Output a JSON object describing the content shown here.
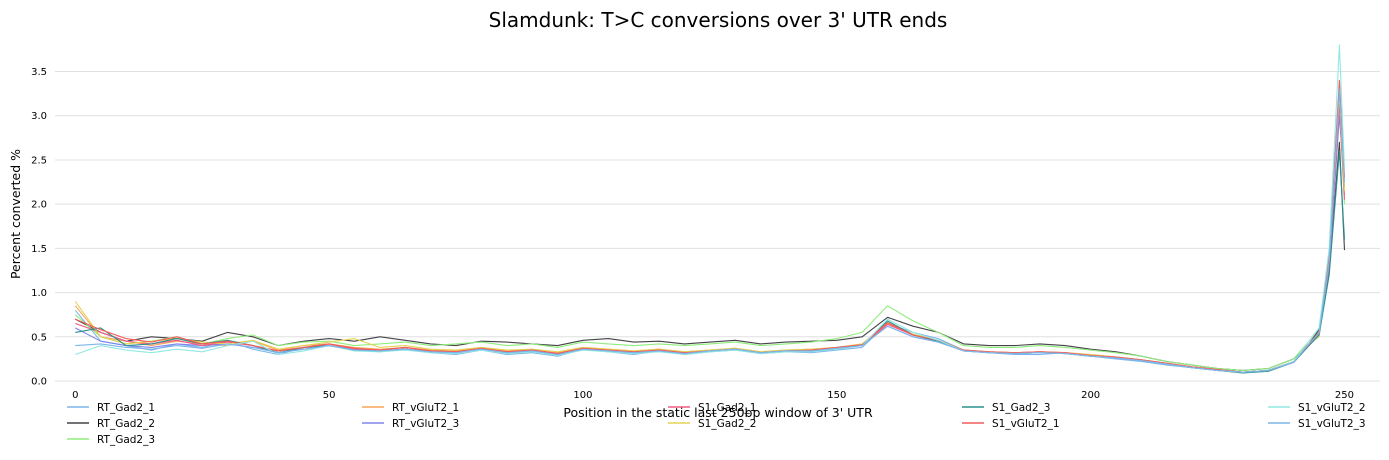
{
  "chart_data": {
    "type": "line",
    "title": "Slamdunk: T>C conversions over 3' UTR ends",
    "xlabel": "Position in the static last 250bp window of 3' UTR",
    "ylabel": "Percent converted %",
    "xlim": [
      -4,
      257
    ],
    "ylim": [
      0,
      3.8
    ],
    "xticks": [
      0,
      50,
      100,
      150,
      200,
      250
    ],
    "yticks": [
      0.0,
      0.5,
      1.0,
      1.5,
      2.0,
      2.5,
      3.0,
      3.5
    ],
    "grid": "horizontal",
    "legend_position": "bottom",
    "x": [
      0,
      5,
      10,
      15,
      20,
      25,
      30,
      35,
      40,
      45,
      50,
      55,
      60,
      65,
      70,
      75,
      80,
      85,
      90,
      95,
      100,
      105,
      110,
      115,
      120,
      125,
      130,
      135,
      140,
      145,
      150,
      155,
      160,
      165,
      170,
      175,
      180,
      185,
      190,
      195,
      200,
      205,
      210,
      215,
      220,
      225,
      230,
      235,
      240,
      243,
      245,
      247,
      249,
      250
    ],
    "series": [
      {
        "name": "RT_Gad2_1",
        "color": "#7cb5ec",
        "values": [
          0.8,
          0.45,
          0.4,
          0.35,
          0.42,
          0.38,
          0.45,
          0.36,
          0.3,
          0.38,
          0.4,
          0.35,
          0.33,
          0.36,
          0.32,
          0.3,
          0.35,
          0.3,
          0.32,
          0.28,
          0.36,
          0.33,
          0.3,
          0.34,
          0.3,
          0.33,
          0.35,
          0.31,
          0.33,
          0.32,
          0.35,
          0.38,
          0.65,
          0.55,
          0.48,
          0.35,
          0.32,
          0.3,
          0.3,
          0.32,
          0.28,
          0.25,
          0.22,
          0.18,
          0.15,
          0.12,
          0.1,
          0.12,
          0.22,
          0.4,
          0.55,
          1.3,
          3.05,
          2.3
        ]
      },
      {
        "name": "RT_Gad2_2",
        "color": "#434348",
        "values": [
          0.7,
          0.55,
          0.45,
          0.5,
          0.48,
          0.45,
          0.55,
          0.5,
          0.4,
          0.45,
          0.48,
          0.45,
          0.5,
          0.46,
          0.42,
          0.4,
          0.45,
          0.44,
          0.42,
          0.4,
          0.46,
          0.48,
          0.44,
          0.45,
          0.42,
          0.44,
          0.46,
          0.42,
          0.44,
          0.45,
          0.46,
          0.5,
          0.72,
          0.62,
          0.55,
          0.42,
          0.4,
          0.4,
          0.42,
          0.4,
          0.36,
          0.33,
          0.28,
          0.22,
          0.18,
          0.14,
          0.12,
          0.14,
          0.25,
          0.42,
          0.58,
          1.25,
          2.7,
          1.48
        ]
      },
      {
        "name": "RT_Gad2_3",
        "color": "#90ed7d",
        "values": [
          0.75,
          0.5,
          0.42,
          0.45,
          0.5,
          0.42,
          0.48,
          0.52,
          0.4,
          0.44,
          0.45,
          0.4,
          0.42,
          0.44,
          0.4,
          0.42,
          0.44,
          0.4,
          0.42,
          0.38,
          0.44,
          0.42,
          0.4,
          0.42,
          0.4,
          0.42,
          0.44,
          0.4,
          0.42,
          0.44,
          0.48,
          0.55,
          0.85,
          0.68,
          0.55,
          0.4,
          0.38,
          0.38,
          0.4,
          0.38,
          0.35,
          0.32,
          0.28,
          0.22,
          0.18,
          0.14,
          0.12,
          0.14,
          0.25,
          0.45,
          0.6,
          1.35,
          3.1,
          2.0
        ]
      },
      {
        "name": "RT_vGluT2_1",
        "color": "#f7a35c",
        "values": [
          0.85,
          0.5,
          0.45,
          0.4,
          0.45,
          0.42,
          0.4,
          0.45,
          0.35,
          0.4,
          0.42,
          0.38,
          0.36,
          0.38,
          0.35,
          0.34,
          0.38,
          0.34,
          0.35,
          0.32,
          0.38,
          0.36,
          0.34,
          0.36,
          0.33,
          0.35,
          0.37,
          0.33,
          0.35,
          0.36,
          0.38,
          0.42,
          0.65,
          0.52,
          0.45,
          0.35,
          0.33,
          0.32,
          0.33,
          0.32,
          0.3,
          0.27,
          0.24,
          0.2,
          0.16,
          0.12,
          0.1,
          0.12,
          0.22,
          0.42,
          0.55,
          1.4,
          3.2,
          2.1
        ]
      },
      {
        "name": "RT_vGluT2_3",
        "color": "#8085e9",
        "values": [
          0.6,
          0.45,
          0.4,
          0.38,
          0.42,
          0.4,
          0.42,
          0.38,
          0.32,
          0.36,
          0.4,
          0.35,
          0.34,
          0.36,
          0.33,
          0.32,
          0.36,
          0.32,
          0.34,
          0.3,
          0.36,
          0.34,
          0.32,
          0.34,
          0.31,
          0.34,
          0.36,
          0.32,
          0.34,
          0.34,
          0.37,
          0.4,
          0.62,
          0.5,
          0.44,
          0.34,
          0.32,
          0.31,
          0.32,
          0.31,
          0.28,
          0.26,
          0.23,
          0.19,
          0.15,
          0.12,
          0.1,
          0.12,
          0.21,
          0.4,
          0.52,
          1.28,
          3.0,
          2.2
        ]
      },
      {
        "name": "S1_Gad2_1",
        "color": "#f15c80",
        "values": [
          0.65,
          0.55,
          0.45,
          0.42,
          0.46,
          0.4,
          0.44,
          0.4,
          0.34,
          0.38,
          0.42,
          0.36,
          0.35,
          0.38,
          0.34,
          0.33,
          0.37,
          0.33,
          0.35,
          0.31,
          0.37,
          0.35,
          0.33,
          0.35,
          0.32,
          0.34,
          0.36,
          0.32,
          0.34,
          0.35,
          0.38,
          0.41,
          0.64,
          0.52,
          0.46,
          0.35,
          0.33,
          0.32,
          0.33,
          0.32,
          0.29,
          0.27,
          0.24,
          0.2,
          0.16,
          0.13,
          0.1,
          0.12,
          0.22,
          0.41,
          0.54,
          1.32,
          3.15,
          2.05
        ]
      },
      {
        "name": "S1_Gad2_2",
        "color": "#e4d354",
        "values": [
          0.9,
          0.5,
          0.42,
          0.45,
          0.48,
          0.44,
          0.42,
          0.46,
          0.36,
          0.4,
          0.44,
          0.48,
          0.38,
          0.4,
          0.36,
          0.35,
          0.38,
          0.35,
          0.36,
          0.33,
          0.38,
          0.36,
          0.34,
          0.36,
          0.33,
          0.35,
          0.37,
          0.33,
          0.35,
          0.36,
          0.38,
          0.42,
          0.66,
          0.53,
          0.46,
          0.35,
          0.33,
          0.32,
          0.33,
          0.32,
          0.3,
          0.27,
          0.24,
          0.2,
          0.16,
          0.13,
          0.1,
          0.12,
          0.22,
          0.42,
          0.5,
          1.38,
          3.25,
          2.15
        ]
      },
      {
        "name": "S1_Gad2_3",
        "color": "#2b908f",
        "values": [
          0.55,
          0.6,
          0.4,
          0.42,
          0.48,
          0.42,
          0.46,
          0.4,
          0.32,
          0.38,
          0.4,
          0.35,
          0.34,
          0.36,
          0.33,
          0.32,
          0.36,
          0.32,
          0.34,
          0.3,
          0.36,
          0.34,
          0.32,
          0.34,
          0.31,
          0.34,
          0.36,
          0.32,
          0.34,
          0.34,
          0.37,
          0.4,
          0.68,
          0.52,
          0.45,
          0.34,
          0.32,
          0.31,
          0.32,
          0.31,
          0.28,
          0.26,
          0.23,
          0.19,
          0.15,
          0.12,
          0.09,
          0.11,
          0.21,
          0.4,
          0.52,
          1.2,
          2.6,
          1.6
        ]
      },
      {
        "name": "S1_vGluT2_1",
        "color": "#f45b5b",
        "values": [
          0.7,
          0.58,
          0.48,
          0.44,
          0.5,
          0.42,
          0.45,
          0.4,
          0.34,
          0.38,
          0.42,
          0.37,
          0.35,
          0.38,
          0.34,
          0.33,
          0.37,
          0.33,
          0.35,
          0.31,
          0.37,
          0.35,
          0.33,
          0.35,
          0.32,
          0.34,
          0.36,
          0.32,
          0.34,
          0.35,
          0.38,
          0.41,
          0.66,
          0.52,
          0.46,
          0.35,
          0.33,
          0.32,
          0.33,
          0.32,
          0.29,
          0.27,
          0.24,
          0.2,
          0.16,
          0.13,
          0.1,
          0.12,
          0.22,
          0.41,
          0.55,
          1.45,
          3.4,
          2.3
        ]
      },
      {
        "name": "S1_vGluT2_2",
        "color": "#91e8e1",
        "values": [
          0.3,
          0.4,
          0.35,
          0.32,
          0.36,
          0.33,
          0.4,
          0.45,
          0.3,
          0.34,
          0.4,
          0.34,
          0.33,
          0.35,
          0.32,
          0.31,
          0.35,
          0.31,
          0.33,
          0.29,
          0.35,
          0.33,
          0.31,
          0.33,
          0.3,
          0.33,
          0.35,
          0.31,
          0.33,
          0.33,
          0.36,
          0.4,
          0.7,
          0.55,
          0.46,
          0.34,
          0.32,
          0.31,
          0.32,
          0.31,
          0.28,
          0.26,
          0.23,
          0.19,
          0.15,
          0.12,
          0.1,
          0.12,
          0.22,
          0.45,
          0.6,
          1.5,
          3.8,
          2.4
        ]
      },
      {
        "name": "S1_vGluT2_3",
        "color": "#7cb5ec",
        "values": [
          0.4,
          0.42,
          0.38,
          0.36,
          0.4,
          0.37,
          0.42,
          0.38,
          0.32,
          0.36,
          0.4,
          0.35,
          0.34,
          0.36,
          0.33,
          0.32,
          0.36,
          0.32,
          0.34,
          0.3,
          0.36,
          0.34,
          0.32,
          0.34,
          0.31,
          0.34,
          0.36,
          0.32,
          0.34,
          0.34,
          0.37,
          0.4,
          0.62,
          0.5,
          0.44,
          0.34,
          0.32,
          0.31,
          0.32,
          0.31,
          0.28,
          0.26,
          0.23,
          0.19,
          0.15,
          0.12,
          0.1,
          0.12,
          0.21,
          0.42,
          0.54,
          1.35,
          3.3,
          2.25
        ]
      }
    ]
  }
}
